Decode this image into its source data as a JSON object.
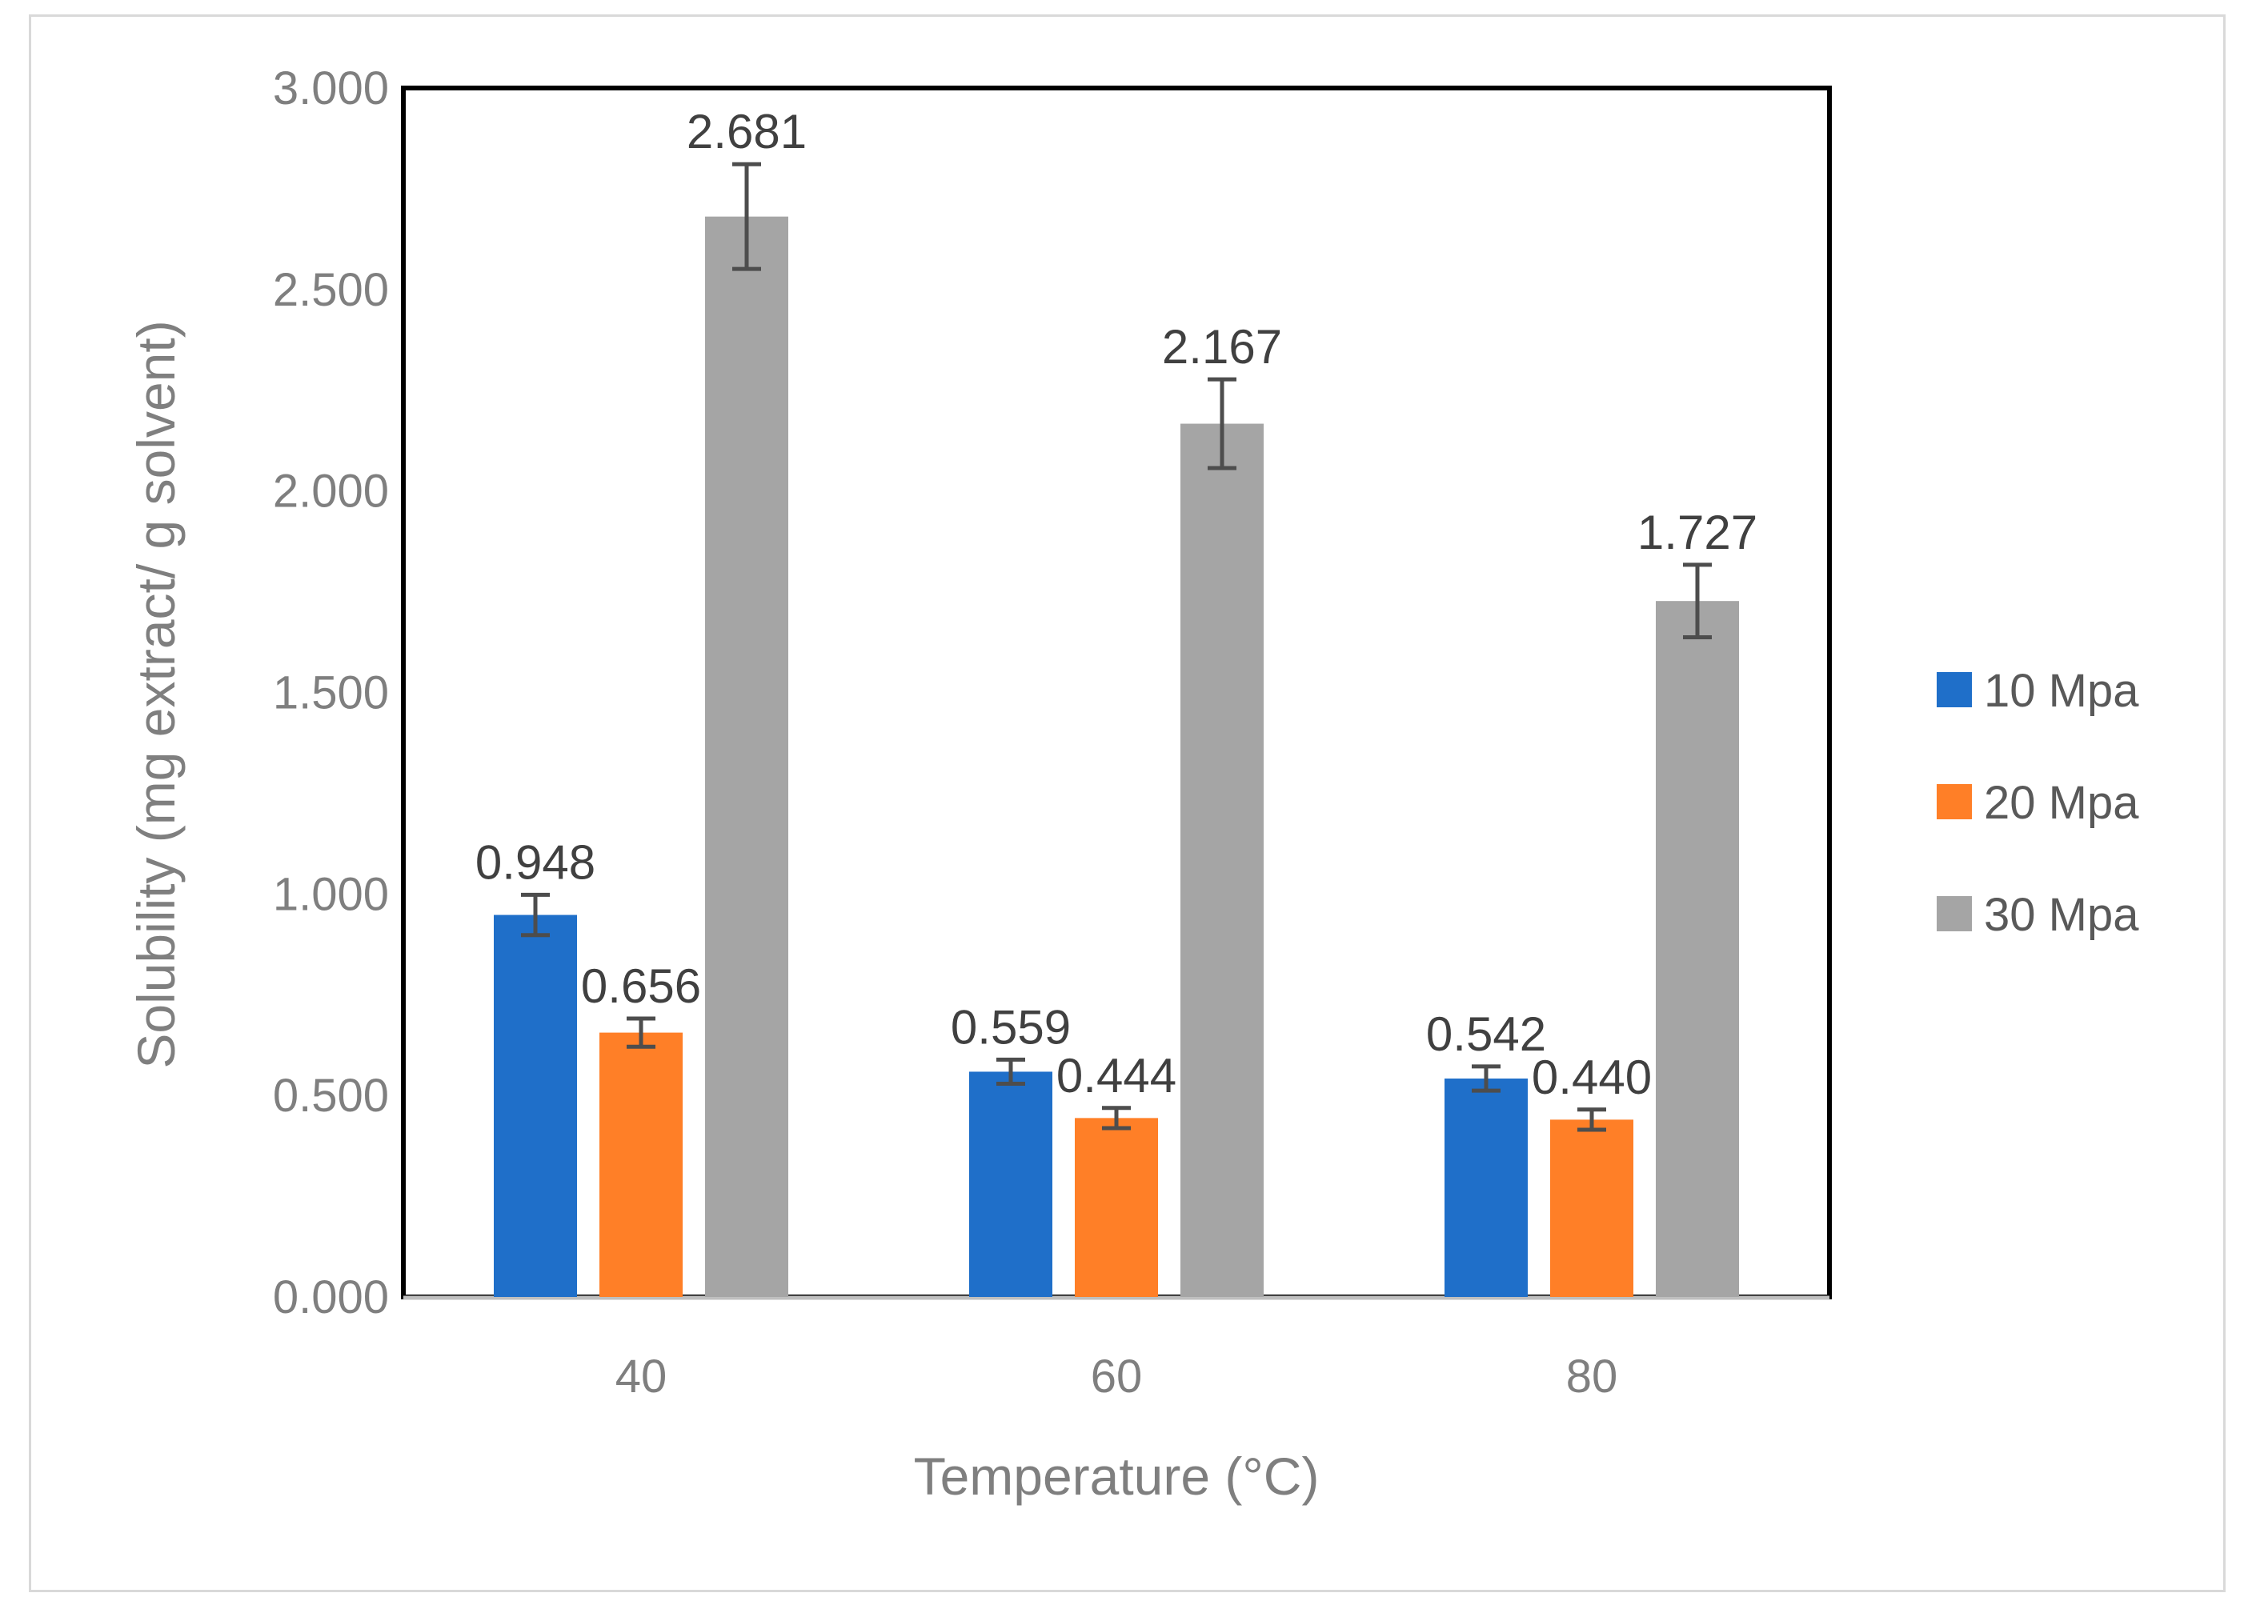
{
  "chart_data": {
    "type": "bar",
    "title": "",
    "xlabel": "Temperature (°C)",
    "ylabel": "Solubility (mg extract/ g solvent)",
    "categories": [
      "40",
      "60",
      "80"
    ],
    "ylim": [
      0,
      3
    ],
    "yticks": [
      "0.000",
      "0.500",
      "1.000",
      "1.500",
      "2.000",
      "2.500",
      "3.000"
    ],
    "legend_position": "right",
    "series": [
      {
        "name": "10 Mpa",
        "color": "#1f6fc9",
        "values": [
          0.948,
          0.559,
          0.542
        ],
        "labels": [
          "0.948",
          "0.559",
          "0.542"
        ],
        "errors": [
          0.05,
          0.03,
          0.03
        ]
      },
      {
        "name": "20 Mpa",
        "color": "#ff7f27",
        "values": [
          0.656,
          0.444,
          0.44
        ],
        "labels": [
          "0.656",
          "0.444",
          "0.440"
        ],
        "errors": [
          0.035,
          0.025,
          0.025
        ]
      },
      {
        "name": "30 Mpa",
        "color": "#a5a5a5",
        "values": [
          2.681,
          2.167,
          1.727
        ],
        "labels": [
          "2.681",
          "2.167",
          "1.727"
        ],
        "errors": [
          0.13,
          0.11,
          0.09
        ]
      }
    ]
  }
}
